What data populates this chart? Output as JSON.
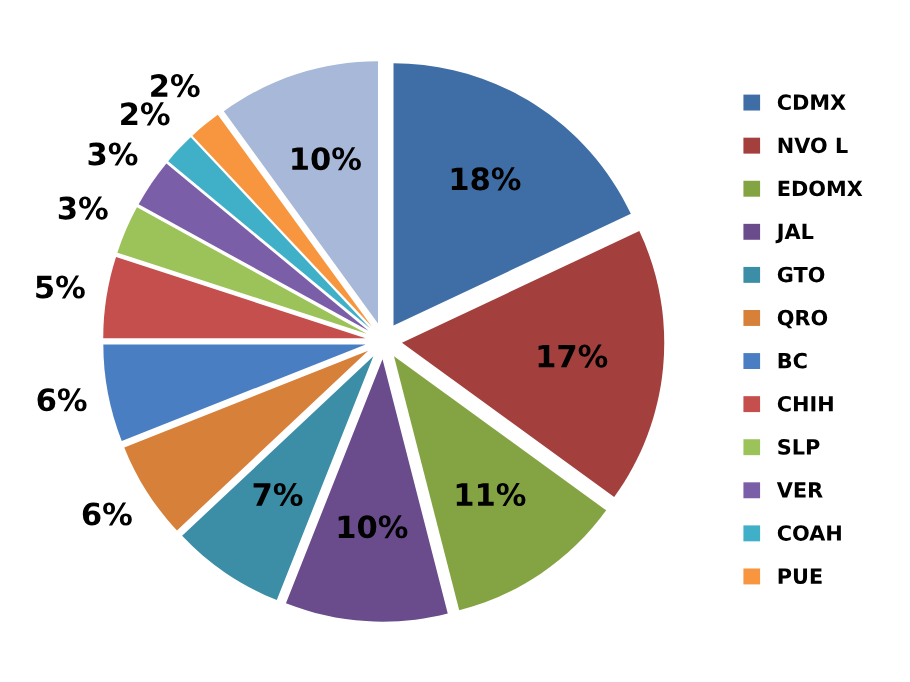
{
  "chart_data": {
    "type": "pie",
    "categories": [
      "CDMX",
      "NVO L",
      "EDOMX",
      "JAL",
      "GTO",
      "QRO",
      "BC",
      "CHIH",
      "SLP",
      "VER",
      "COAH",
      "PUE",
      null
    ],
    "values": [
      18,
      17,
      11,
      10,
      7,
      6,
      6,
      5,
      3,
      3,
      2,
      2,
      10
    ],
    "colors": [
      "#3f6ea6",
      "#a33f3c",
      "#84a444",
      "#6a4c8c",
      "#3b8ea5",
      "#d7803a",
      "#4a7ec2",
      "#c44f4c",
      "#9cc25a",
      "#7b5ea8",
      "#3fb0c8",
      "#f7963e",
      "#a7b8d8"
    ],
    "value_labels": [
      "18%",
      "17%",
      "11%",
      "10%",
      "7%",
      "6%",
      "6%",
      "5%",
      "3%",
      "3%",
      "2%",
      "2%",
      "10%"
    ],
    "legend": "right"
  }
}
